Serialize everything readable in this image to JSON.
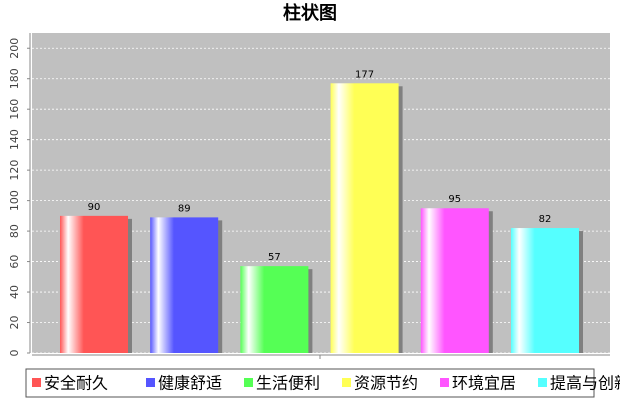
{
  "chart_data": {
    "type": "bar",
    "title": "柱状图",
    "categories": [
      null
    ],
    "series": [
      {
        "name": "安全耐久",
        "color": "#ff5555",
        "values": [
          90
        ]
      },
      {
        "name": "健康舒适",
        "color": "#5555ff",
        "values": [
          89
        ]
      },
      {
        "name": "生活便利",
        "color": "#55ff55",
        "values": [
          57
        ]
      },
      {
        "name": "资源节约",
        "color": "#ffff55",
        "values": [
          177
        ]
      },
      {
        "name": "环境宜居",
        "color": "#ff55ff",
        "values": [
          95
        ]
      },
      {
        "name": "提高与创新",
        "color": "#55ffff",
        "values": [
          82
        ]
      }
    ],
    "ylim": [
      0,
      210
    ],
    "yticks": [
      0,
      20,
      40,
      60,
      80,
      100,
      120,
      140,
      160,
      180,
      200
    ],
    "grid": true,
    "legend": "bottom"
  }
}
